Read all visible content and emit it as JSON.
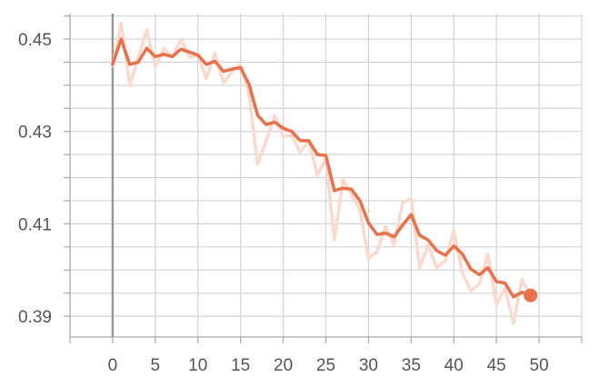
{
  "chart_data": {
    "type": "line",
    "x_ticks": [
      "0",
      "5",
      "10",
      "15",
      "20",
      "25",
      "30",
      "35",
      "40",
      "45",
      "50"
    ],
    "y_ticks": [
      "0.45",
      "0.43",
      "0.41",
      "0.39"
    ],
    "xlim": [
      -5,
      55
    ],
    "ylim": [
      0.3855,
      0.4555
    ],
    "grid": true,
    "colors": {
      "smoothed": "#e8704a",
      "raw": "#fbd9cc",
      "grid": "#d4d4d4",
      "axis": "#aaaaaa",
      "zero_line": "#999999"
    },
    "series": [
      {
        "role": "raw",
        "x": [
          0,
          1,
          2,
          3,
          4,
          5,
          6,
          7,
          8,
          9,
          10,
          11,
          12,
          13,
          14,
          15,
          16,
          17,
          18,
          19,
          20,
          21,
          22,
          23,
          24,
          25,
          26,
          27,
          28,
          29,
          30,
          31,
          32,
          33,
          34,
          35,
          36,
          37,
          38,
          39,
          40,
          41,
          42,
          43,
          44,
          45,
          46,
          47,
          48,
          49
        ],
        "values": [
          0.444,
          0.4535,
          0.44,
          0.446,
          0.452,
          0.444,
          0.448,
          0.446,
          0.45,
          0.446,
          0.4465,
          0.4415,
          0.447,
          0.4405,
          0.443,
          0.4445,
          0.438,
          0.423,
          0.428,
          0.4335,
          0.429,
          0.429,
          0.4255,
          0.428,
          0.4205,
          0.424,
          0.4065,
          0.4195,
          0.4165,
          0.413,
          0.4025,
          0.404,
          0.4095,
          0.4055,
          0.4145,
          0.4155,
          0.4005,
          0.4055,
          0.4005,
          0.402,
          0.4085,
          0.3995,
          0.3955,
          0.397,
          0.4035,
          0.3925,
          0.396,
          0.3885,
          0.398,
          0.3945
        ]
      },
      {
        "role": "smoothed",
        "x": [
          0,
          1,
          2,
          3,
          4,
          5,
          6,
          7,
          8,
          9,
          10,
          11,
          12,
          13,
          14,
          15,
          16,
          17,
          18,
          19,
          20,
          21,
          22,
          23,
          24,
          25,
          26,
          27,
          28,
          29,
          30,
          31,
          32,
          33,
          34,
          35,
          36,
          37,
          38,
          39,
          40,
          41,
          42,
          43,
          44,
          45,
          46,
          47,
          48,
          49
        ],
        "values": [
          0.4445,
          0.45,
          0.4445,
          0.445,
          0.448,
          0.4462,
          0.4467,
          0.4462,
          0.4478,
          0.4472,
          0.4465,
          0.4445,
          0.4452,
          0.443,
          0.4435,
          0.4438,
          0.4402,
          0.4335,
          0.4315,
          0.432,
          0.4307,
          0.43,
          0.428,
          0.428,
          0.425,
          0.4248,
          0.4172,
          0.4177,
          0.4175,
          0.415,
          0.4102,
          0.4077,
          0.408,
          0.4072,
          0.4097,
          0.412,
          0.4075,
          0.4065,
          0.4042,
          0.4032,
          0.4052,
          0.4035,
          0.4002,
          0.399,
          0.4005,
          0.3975,
          0.3972,
          0.3942,
          0.3952,
          0.3945
        ]
      }
    ]
  }
}
